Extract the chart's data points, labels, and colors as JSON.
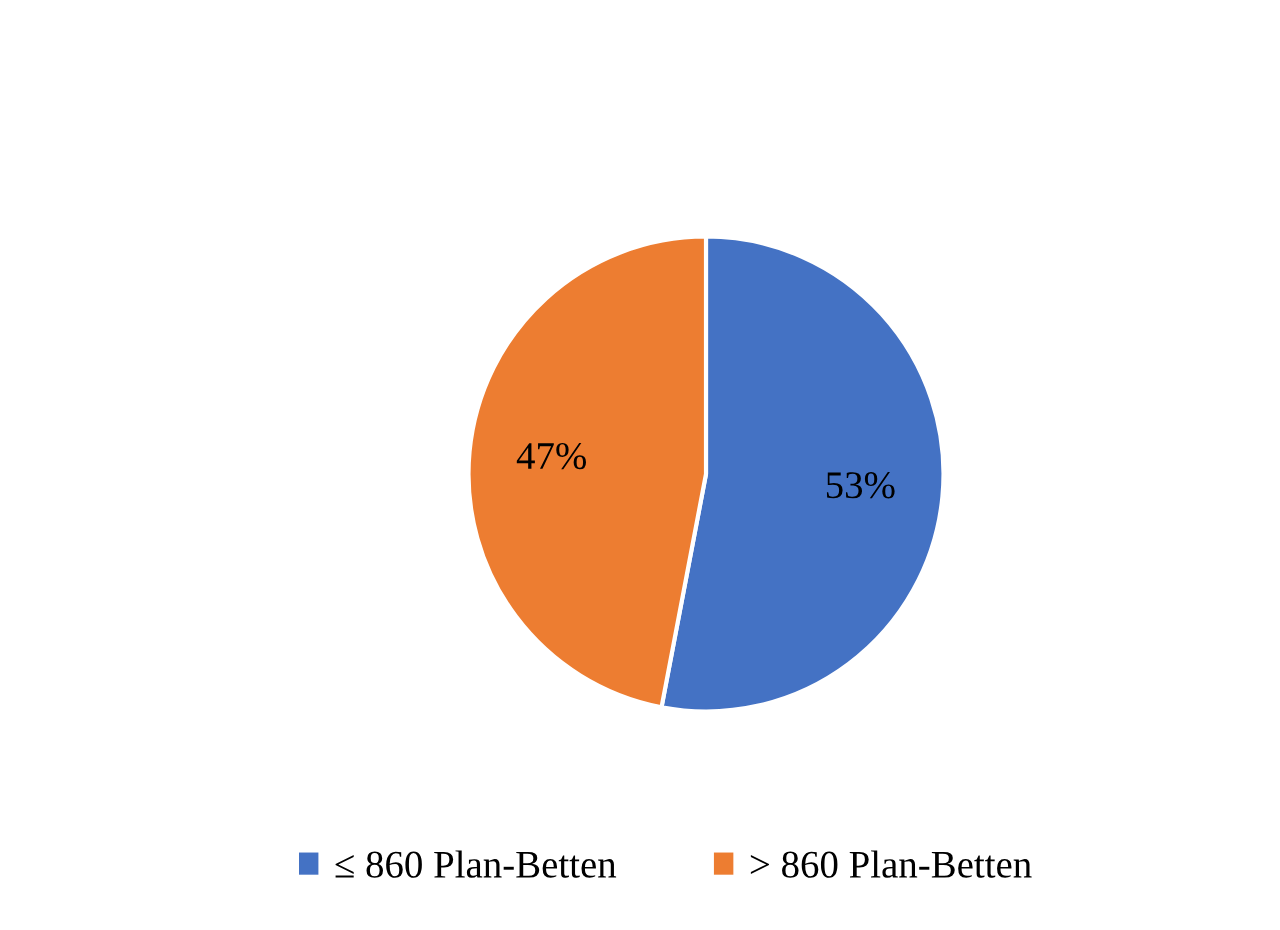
{
  "chart_data": {
    "type": "pie",
    "categories": [
      "≤ 860 Plan-Betten",
      "> 860 Plan-Betten"
    ],
    "values": [
      53,
      47
    ],
    "colors": [
      "#4472c4",
      "#ed7d31"
    ],
    "value_labels": [
      "53%",
      "47%"
    ],
    "legend": "bottom"
  }
}
